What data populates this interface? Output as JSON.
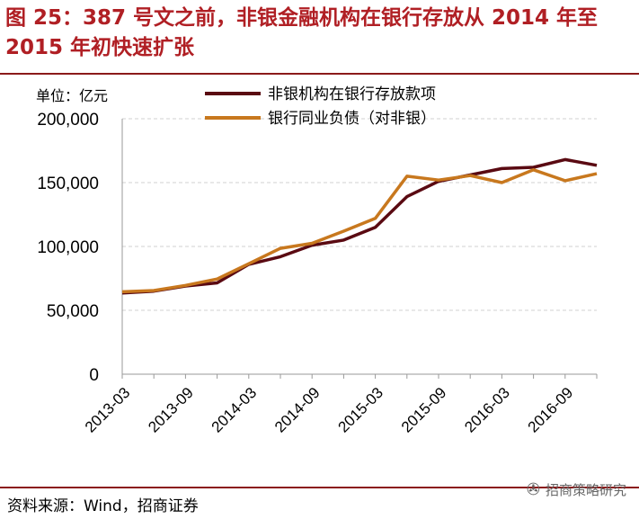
{
  "header": {
    "title": "图 25：387 号文之前，非银金融机构在银行存放从 2014 年至 2015 年初快速扩张"
  },
  "unit_label": "单位：亿元",
  "source": "资料来源：Wind，招商证券",
  "watermark": {
    "icon": "wechat-icon",
    "text": "招商策略研究"
  },
  "colors": {
    "series1": "#5a0a12",
    "series2": "#c8781e",
    "title": "#b01f24",
    "grid": "#d0d0d0"
  },
  "chart_data": {
    "type": "line",
    "title": "",
    "xlabel": "",
    "ylabel": "单位：亿元",
    "ylim": [
      0,
      200000
    ],
    "yticks": [
      "0",
      "50,000",
      "100,000",
      "150,000",
      "200,000"
    ],
    "ytick_values": [
      0,
      50000,
      100000,
      150000,
      200000
    ],
    "x": [
      "2013-03",
      "2013-06",
      "2013-09",
      "2013-12",
      "2014-03",
      "2014-06",
      "2014-09",
      "2014-12",
      "2015-03",
      "2015-06",
      "2015-09",
      "2015-12",
      "2016-03",
      "2016-06",
      "2016-09",
      "2016-12"
    ],
    "xtick_labels": [
      "2013-03",
      "2013-09",
      "2014-03",
      "2014-09",
      "2015-03",
      "2015-09",
      "2016-03",
      "2016-09"
    ],
    "grid": true,
    "legend_position": "top-right",
    "series": [
      {
        "name": "非银机构在银行存放款项",
        "values": [
          63500,
          65000,
          69000,
          71500,
          86000,
          92000,
          101000,
          105000,
          115000,
          139000,
          151000,
          156000,
          161000,
          162000,
          168000,
          163500
        ]
      },
      {
        "name": "银行同业负债（对非银）",
        "values": [
          64500,
          65500,
          69500,
          74500,
          86500,
          98500,
          102500,
          112000,
          122000,
          155000,
          152000,
          155500,
          150000,
          160000,
          151500,
          157000
        ]
      }
    ]
  }
}
